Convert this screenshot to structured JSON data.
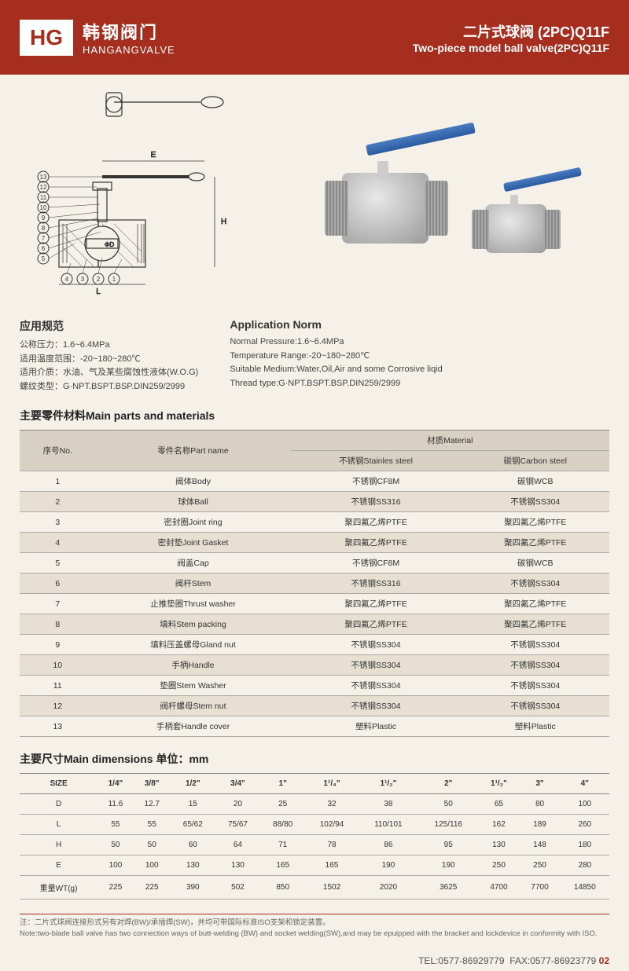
{
  "header": {
    "logo": "HG",
    "brand_cn": "韩钢阀门",
    "brand_en": "HANGANGVALVE",
    "title_cn": "二片式球阀 (2PC)Q11F",
    "title_en": "Two-piece model ball valve(2PC)Q11F"
  },
  "specs_cn": {
    "title": "应用规范",
    "lines": [
      "公称压力：1.6~6.4MPa",
      "适用温度范围：-20~180~280℃",
      "适用介质：水油、气及某些腐蚀性液体(W.O.G)",
      "螺纹类型：G·NPT.BSPT.BSP.DIN259/2999"
    ]
  },
  "specs_en": {
    "title": "Application Norm",
    "lines": [
      "Normal Pressure:1.6~6.4MPa",
      "Temperature Range:-20~180~280℃",
      "Suitable Medium:Water,Oil,Air and some Corrosive liqid",
      "Thread type:G·NPT.BSPT.BSP.DIN259/2999"
    ]
  },
  "parts": {
    "title": "主要零件材料Main parts and materials",
    "headers": {
      "no": "序号No.",
      "name": "零件名称Part name",
      "material": "材质Material",
      "stainless": "不锈钢Stainles steel",
      "carbon": "碳钢Carbon steel"
    },
    "rows": [
      {
        "no": "1",
        "name": "阀体Body",
        "ss": "不锈钢CF8M",
        "cs": "碳钢WCB"
      },
      {
        "no": "2",
        "name": "球体Ball",
        "ss": "不锈钢SS316",
        "cs": "不锈钢SS304"
      },
      {
        "no": "3",
        "name": "密封圈Joint ring",
        "ss": "聚四氟乙烯PTFE",
        "cs": "聚四氟乙烯PTFE"
      },
      {
        "no": "4",
        "name": "密封垫Joint Gasket",
        "ss": "聚四氟乙烯PTFE",
        "cs": "聚四氟乙烯PTFE"
      },
      {
        "no": "5",
        "name": "阀盖Cap",
        "ss": "不锈钢CF8M",
        "cs": "碳钢WCB"
      },
      {
        "no": "6",
        "name": "阀杆Stem",
        "ss": "不锈钢SS316",
        "cs": "不锈钢SS304"
      },
      {
        "no": "7",
        "name": "止推垫圈Thrust washer",
        "ss": "聚四氟乙烯PTFE",
        "cs": "聚四氟乙烯PTFE"
      },
      {
        "no": "8",
        "name": "填料Stem packing",
        "ss": "聚四氟乙烯PTFE",
        "cs": "聚四氟乙烯PTFE"
      },
      {
        "no": "9",
        "name": "填料压盖螺母Gland nut",
        "ss": "不锈钢SS304",
        "cs": "不锈钢SS304"
      },
      {
        "no": "10",
        "name": "手柄Handle",
        "ss": "不锈钢SS304",
        "cs": "不锈钢SS304"
      },
      {
        "no": "11",
        "name": "垫圈Stem Washer",
        "ss": "不锈钢SS304",
        "cs": "不锈钢SS304"
      },
      {
        "no": "12",
        "name": "阀杆螺母Stem nut",
        "ss": "不锈钢SS304",
        "cs": "不锈钢SS304"
      },
      {
        "no": "13",
        "name": "手柄套Handle cover",
        "ss": "塑料Plastic",
        "cs": "塑料Plastic"
      }
    ]
  },
  "dims": {
    "title": "主要尺寸Main dimensions  单位：mm",
    "headers": [
      "SIZE",
      "1/4\"",
      "3/8\"",
      "1/2\"",
      "3/4\"",
      "1\"",
      "1¹/₄\"",
      "1¹/₂\"",
      "2\"",
      "1¹/₂\"",
      "3\"",
      "4\""
    ],
    "rows": [
      [
        "D",
        "11.6",
        "12.7",
        "15",
        "20",
        "25",
        "32",
        "38",
        "50",
        "65",
        "80",
        "100"
      ],
      [
        "L",
        "55",
        "55",
        "65/62",
        "75/67",
        "88/80",
        "102/94",
        "110/101",
        "125/116",
        "162",
        "189",
        "260"
      ],
      [
        "H",
        "50",
        "50",
        "60",
        "64",
        "71",
        "78",
        "86",
        "95",
        "130",
        "148",
        "180"
      ],
      [
        "E",
        "100",
        "100",
        "130",
        "130",
        "165",
        "165",
        "190",
        "190",
        "250",
        "250",
        "280"
      ],
      [
        "重量WT(g)",
        "225",
        "225",
        "390",
        "502",
        "850",
        "1502",
        "2020",
        "3625",
        "4700",
        "7700",
        "14850"
      ]
    ]
  },
  "note": {
    "cn": "注：二片式球阀连接形式另有对焊(BW)/承插焊(SW)，并均可带国际标准ISO支架和锁定装置。",
    "en": "Note:two-blade ball valve has two connection ways of butt-welding (BW) and socket welding(SW),and may be epuipped with the bracket and lockdevice in conformity with ISO."
  },
  "footer": {
    "tel": "TEL:0577-86929779",
    "fax": "FAX:0577-86923779",
    "page": "02"
  },
  "diagram": {
    "callouts": [
      "4",
      "3",
      "2",
      "1",
      "5",
      "6",
      "7",
      "8",
      "9",
      "10",
      "11",
      "12",
      "13"
    ],
    "dims": [
      "L",
      "E",
      "H",
      "ΦD"
    ]
  }
}
